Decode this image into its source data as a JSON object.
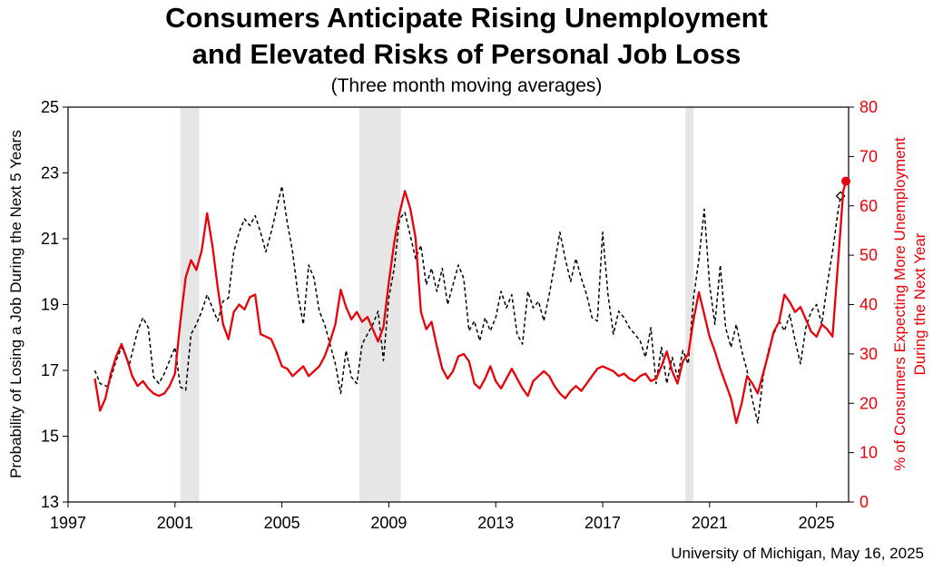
{
  "title_line1": "Consumers Anticipate Rising Unemployment",
  "title_line2": "and Elevated Risks of Personal Job Loss",
  "subtitle": "(Three month moving averages)",
  "source": "University of Michigan, May 16, 2025",
  "colors": {
    "red": "#e8000b",
    "black": "#000000",
    "recession": "#e6e6e6"
  },
  "chart_data": {
    "type": "line",
    "x_ticks": [
      "1997",
      "2001",
      "2005",
      "2009",
      "2013",
      "2017",
      "2021",
      "2025"
    ],
    "xlim": [
      1997,
      2026.2
    ],
    "left_axis": {
      "label": "Probability of Losing a Job During the Next 5 Years",
      "ylim": [
        13,
        25
      ],
      "ticks": [
        "13",
        "15",
        "17",
        "19",
        "21",
        "23",
        "25"
      ]
    },
    "right_axis": {
      "label_line1": "% of Consumers Expecting More Unemployment",
      "label_line2": "During the Next Year",
      "ylim": [
        0,
        80
      ],
      "ticks": [
        "0",
        "10",
        "20",
        "30",
        "40",
        "50",
        "60",
        "70",
        "80"
      ],
      "color": "#e8000b"
    },
    "recessions": [
      [
        2001.2,
        2001.9
      ],
      [
        2007.9,
        2009.45
      ],
      [
        2020.1,
        2020.4
      ]
    ],
    "series": [
      {
        "axis": "left",
        "style": "dashed",
        "color": "#000000",
        "points": [
          [
            1998.0,
            17.0
          ],
          [
            1998.2,
            16.6
          ],
          [
            1998.5,
            16.5
          ],
          [
            1998.8,
            17.3
          ],
          [
            1999.0,
            17.7
          ],
          [
            1999.3,
            17.2
          ],
          [
            1999.6,
            18.2
          ],
          [
            1999.8,
            18.6
          ],
          [
            2000.0,
            18.3
          ],
          [
            2000.2,
            16.8
          ],
          [
            2000.4,
            16.6
          ],
          [
            2000.6,
            16.9
          ],
          [
            2000.8,
            17.3
          ],
          [
            2001.0,
            17.7
          ],
          [
            2001.2,
            16.5
          ],
          [
            2001.4,
            16.4
          ],
          [
            2001.6,
            18.1
          ],
          [
            2001.8,
            18.4
          ],
          [
            2002.0,
            18.8
          ],
          [
            2002.2,
            19.3
          ],
          [
            2002.4,
            18.9
          ],
          [
            2002.6,
            18.5
          ],
          [
            2002.8,
            19.1
          ],
          [
            2003.0,
            19.2
          ],
          [
            2003.2,
            20.6
          ],
          [
            2003.4,
            21.2
          ],
          [
            2003.6,
            21.6
          ],
          [
            2003.8,
            21.4
          ],
          [
            2004.0,
            21.7
          ],
          [
            2004.2,
            21.2
          ],
          [
            2004.4,
            20.6
          ],
          [
            2004.6,
            21.2
          ],
          [
            2004.8,
            21.9
          ],
          [
            2005.0,
            22.6
          ],
          [
            2005.2,
            21.5
          ],
          [
            2005.4,
            20.6
          ],
          [
            2005.6,
            19.3
          ],
          [
            2005.8,
            18.4
          ],
          [
            2006.0,
            20.2
          ],
          [
            2006.2,
            19.8
          ],
          [
            2006.4,
            18.8
          ],
          [
            2006.6,
            18.4
          ],
          [
            2006.8,
            17.8
          ],
          [
            2007.0,
            17.2
          ],
          [
            2007.2,
            16.3
          ],
          [
            2007.4,
            17.6
          ],
          [
            2007.6,
            16.8
          ],
          [
            2007.8,
            16.6
          ],
          [
            2008.0,
            17.8
          ],
          [
            2008.2,
            18.1
          ],
          [
            2008.4,
            18.4
          ],
          [
            2008.6,
            18.8
          ],
          [
            2008.8,
            17.3
          ],
          [
            2009.0,
            19.2
          ],
          [
            2009.2,
            20.1
          ],
          [
            2009.4,
            21.6
          ],
          [
            2009.6,
            21.8
          ],
          [
            2009.8,
            21.1
          ],
          [
            2010.0,
            20.4
          ],
          [
            2010.2,
            20.8
          ],
          [
            2010.4,
            19.6
          ],
          [
            2010.6,
            20.1
          ],
          [
            2010.8,
            19.4
          ],
          [
            2011.0,
            20.1
          ],
          [
            2011.2,
            19.0
          ],
          [
            2011.4,
            19.6
          ],
          [
            2011.6,
            20.2
          ],
          [
            2011.8,
            19.8
          ],
          [
            2012.0,
            18.2
          ],
          [
            2012.2,
            18.5
          ],
          [
            2012.4,
            17.9
          ],
          [
            2012.6,
            18.6
          ],
          [
            2012.8,
            18.2
          ],
          [
            2013.0,
            18.6
          ],
          [
            2013.2,
            19.4
          ],
          [
            2013.4,
            18.9
          ],
          [
            2013.6,
            19.3
          ],
          [
            2013.8,
            18.1
          ],
          [
            2014.0,
            17.8
          ],
          [
            2014.2,
            19.4
          ],
          [
            2014.4,
            18.9
          ],
          [
            2014.6,
            19.1
          ],
          [
            2014.8,
            18.5
          ],
          [
            2015.0,
            19.3
          ],
          [
            2015.2,
            20.2
          ],
          [
            2015.4,
            21.2
          ],
          [
            2015.6,
            20.4
          ],
          [
            2015.8,
            19.7
          ],
          [
            2016.0,
            20.4
          ],
          [
            2016.2,
            19.8
          ],
          [
            2016.4,
            19.3
          ],
          [
            2016.6,
            18.6
          ],
          [
            2016.8,
            18.5
          ],
          [
            2017.0,
            21.2
          ],
          [
            2017.2,
            19.3
          ],
          [
            2017.4,
            18.1
          ],
          [
            2017.6,
            18.8
          ],
          [
            2017.8,
            18.6
          ],
          [
            2018.0,
            18.3
          ],
          [
            2018.2,
            18.1
          ],
          [
            2018.4,
            17.9
          ],
          [
            2018.6,
            17.4
          ],
          [
            2018.8,
            18.3
          ],
          [
            2019.0,
            16.6
          ],
          [
            2019.2,
            17.7
          ],
          [
            2019.4,
            16.6
          ],
          [
            2019.6,
            17.4
          ],
          [
            2019.8,
            16.8
          ],
          [
            2020.0,
            17.6
          ],
          [
            2020.2,
            17.2
          ],
          [
            2020.4,
            19.2
          ],
          [
            2020.6,
            20.4
          ],
          [
            2020.8,
            21.9
          ],
          [
            2021.0,
            19.6
          ],
          [
            2021.2,
            18.4
          ],
          [
            2021.4,
            20.2
          ],
          [
            2021.6,
            18.3
          ],
          [
            2021.8,
            17.7
          ],
          [
            2022.0,
            18.4
          ],
          [
            2022.2,
            17.6
          ],
          [
            2022.4,
            17.0
          ],
          [
            2022.6,
            16.1
          ],
          [
            2022.8,
            15.4
          ],
          [
            2023.0,
            16.8
          ],
          [
            2023.2,
            17.6
          ],
          [
            2023.4,
            18.1
          ],
          [
            2023.6,
            18.5
          ],
          [
            2023.8,
            18.2
          ],
          [
            2024.0,
            18.7
          ],
          [
            2024.2,
            17.9
          ],
          [
            2024.4,
            17.2
          ],
          [
            2024.6,
            18.3
          ],
          [
            2024.8,
            18.8
          ],
          [
            2025.0,
            19.0
          ],
          [
            2025.2,
            18.4
          ],
          [
            2025.4,
            19.6
          ],
          [
            2025.6,
            20.6
          ],
          [
            2025.8,
            21.8
          ],
          [
            2025.9,
            22.3
          ]
        ],
        "last_point": [
          2025.9,
          22.3
        ],
        "marker": "diamond"
      },
      {
        "axis": "right",
        "style": "solid",
        "color": "#e8000b",
        "points": [
          [
            1998.0,
            25.0
          ],
          [
            1998.2,
            18.5
          ],
          [
            1998.4,
            21.0
          ],
          [
            1998.6,
            26.0
          ],
          [
            1998.8,
            29.5
          ],
          [
            1999.0,
            32.0
          ],
          [
            1999.2,
            29.0
          ],
          [
            1999.4,
            25.5
          ],
          [
            1999.6,
            23.5
          ],
          [
            1999.8,
            24.5
          ],
          [
            2000.0,
            23.0
          ],
          [
            2000.2,
            22.0
          ],
          [
            2000.4,
            21.5
          ],
          [
            2000.6,
            22.0
          ],
          [
            2000.8,
            23.5
          ],
          [
            2001.0,
            26.0
          ],
          [
            2001.2,
            36.5
          ],
          [
            2001.4,
            45.5
          ],
          [
            2001.6,
            49.0
          ],
          [
            2001.8,
            47.0
          ],
          [
            2002.0,
            51.0
          ],
          [
            2002.2,
            58.5
          ],
          [
            2002.4,
            52.0
          ],
          [
            2002.6,
            43.5
          ],
          [
            2002.8,
            36.0
          ],
          [
            2003.0,
            33.0
          ],
          [
            2003.2,
            38.5
          ],
          [
            2003.4,
            40.0
          ],
          [
            2003.6,
            39.0
          ],
          [
            2003.8,
            41.5
          ],
          [
            2004.0,
            42.0
          ],
          [
            2004.2,
            34.0
          ],
          [
            2004.4,
            33.5
          ],
          [
            2004.6,
            33.0
          ],
          [
            2004.8,
            30.5
          ],
          [
            2005.0,
            27.5
          ],
          [
            2005.2,
            27.0
          ],
          [
            2005.4,
            25.5
          ],
          [
            2005.6,
            26.5
          ],
          [
            2005.8,
            27.5
          ],
          [
            2006.0,
            25.5
          ],
          [
            2006.2,
            26.5
          ],
          [
            2006.4,
            27.5
          ],
          [
            2006.6,
            29.5
          ],
          [
            2006.8,
            32.5
          ],
          [
            2007.0,
            36.0
          ],
          [
            2007.2,
            43.0
          ],
          [
            2007.4,
            39.5
          ],
          [
            2007.6,
            37.0
          ],
          [
            2007.8,
            38.5
          ],
          [
            2008.0,
            36.5
          ],
          [
            2008.2,
            37.5
          ],
          [
            2008.4,
            35.0
          ],
          [
            2008.6,
            32.5
          ],
          [
            2008.8,
            35.5
          ],
          [
            2009.0,
            44.5
          ],
          [
            2009.2,
            52.5
          ],
          [
            2009.4,
            58.5
          ],
          [
            2009.6,
            63.0
          ],
          [
            2009.8,
            59.5
          ],
          [
            2010.0,
            53.5
          ],
          [
            2010.2,
            38.5
          ],
          [
            2010.4,
            35.0
          ],
          [
            2010.6,
            36.5
          ],
          [
            2010.8,
            31.5
          ],
          [
            2011.0,
            27.0
          ],
          [
            2011.2,
            25.0
          ],
          [
            2011.4,
            26.5
          ],
          [
            2011.6,
            29.5
          ],
          [
            2011.8,
            30.0
          ],
          [
            2012.0,
            28.5
          ],
          [
            2012.2,
            24.0
          ],
          [
            2012.4,
            23.0
          ],
          [
            2012.6,
            25.0
          ],
          [
            2012.8,
            27.5
          ],
          [
            2013.0,
            24.5
          ],
          [
            2013.2,
            23.0
          ],
          [
            2013.4,
            25.0
          ],
          [
            2013.6,
            27.0
          ],
          [
            2013.8,
            25.0
          ],
          [
            2014.0,
            23.0
          ],
          [
            2014.2,
            21.5
          ],
          [
            2014.4,
            24.5
          ],
          [
            2014.6,
            25.5
          ],
          [
            2014.8,
            26.5
          ],
          [
            2015.0,
            25.5
          ],
          [
            2015.2,
            23.5
          ],
          [
            2015.4,
            22.0
          ],
          [
            2015.6,
            21.0
          ],
          [
            2015.8,
            22.5
          ],
          [
            2016.0,
            23.5
          ],
          [
            2016.2,
            22.5
          ],
          [
            2016.4,
            24.0
          ],
          [
            2016.6,
            25.5
          ],
          [
            2016.8,
            27.0
          ],
          [
            2017.0,
            27.5
          ],
          [
            2017.2,
            27.0
          ],
          [
            2017.4,
            26.5
          ],
          [
            2017.6,
            25.5
          ],
          [
            2017.8,
            26.0
          ],
          [
            2018.0,
            25.0
          ],
          [
            2018.2,
            24.5
          ],
          [
            2018.4,
            25.5
          ],
          [
            2018.6,
            26.0
          ],
          [
            2018.8,
            24.5
          ],
          [
            2019.0,
            25.0
          ],
          [
            2019.2,
            27.5
          ],
          [
            2019.4,
            30.5
          ],
          [
            2019.6,
            26.5
          ],
          [
            2019.8,
            24.0
          ],
          [
            2020.0,
            28.5
          ],
          [
            2020.2,
            30.0
          ],
          [
            2020.4,
            37.0
          ],
          [
            2020.6,
            42.5
          ],
          [
            2020.8,
            38.0
          ],
          [
            2021.0,
            33.5
          ],
          [
            2021.2,
            30.5
          ],
          [
            2021.4,
            27.0
          ],
          [
            2021.6,
            24.0
          ],
          [
            2021.8,
            21.0
          ],
          [
            2022.0,
            16.0
          ],
          [
            2022.2,
            20.0
          ],
          [
            2022.4,
            25.5
          ],
          [
            2022.6,
            24.0
          ],
          [
            2022.8,
            22.0
          ],
          [
            2023.0,
            26.0
          ],
          [
            2023.2,
            30.0
          ],
          [
            2023.4,
            34.5
          ],
          [
            2023.6,
            36.5
          ],
          [
            2023.8,
            42.0
          ],
          [
            2024.0,
            40.5
          ],
          [
            2024.2,
            38.5
          ],
          [
            2024.4,
            39.5
          ],
          [
            2024.6,
            37.0
          ],
          [
            2024.8,
            34.5
          ],
          [
            2025.0,
            33.5
          ],
          [
            2025.2,
            36.0
          ],
          [
            2025.4,
            35.0
          ],
          [
            2025.6,
            33.5
          ],
          [
            2025.8,
            48.0
          ],
          [
            2026.0,
            63.0
          ],
          [
            2026.1,
            65.0
          ]
        ],
        "last_point": [
          2026.1,
          65.0
        ],
        "marker": "circle"
      }
    ]
  }
}
